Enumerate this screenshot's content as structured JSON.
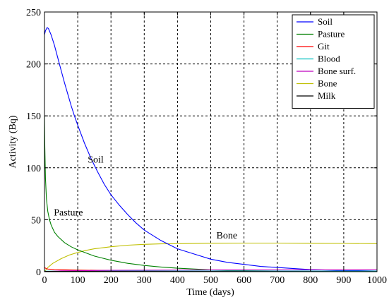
{
  "chart_data": {
    "type": "line",
    "title": "",
    "xlabel": "Time (days)",
    "ylabel": "Activity (Bq)",
    "xlim": [
      0,
      1000
    ],
    "ylim": [
      0,
      250
    ],
    "xticks": [
      0,
      100,
      200,
      300,
      400,
      500,
      600,
      700,
      800,
      900,
      1000
    ],
    "yticks": [
      0,
      50,
      100,
      150,
      200,
      250
    ],
    "grid": true,
    "grid_style": "dashed",
    "legend_position": "top-right",
    "series": [
      {
        "name": "Soil",
        "color": "#0000ff",
        "points": [
          [
            0,
            228
          ],
          [
            3,
            232
          ],
          [
            8,
            235
          ],
          [
            12,
            234
          ],
          [
            20,
            228
          ],
          [
            30,
            218
          ],
          [
            40,
            206
          ],
          [
            50,
            194
          ],
          [
            60,
            182
          ],
          [
            70,
            171
          ],
          [
            80,
            160
          ],
          [
            90,
            150
          ],
          [
            100,
            141
          ],
          [
            120,
            124
          ],
          [
            140,
            109
          ],
          [
            160,
            96
          ],
          [
            180,
            84
          ],
          [
            200,
            74
          ],
          [
            225,
            64
          ],
          [
            250,
            55
          ],
          [
            275,
            47
          ],
          [
            300,
            40
          ],
          [
            350,
            30
          ],
          [
            400,
            22
          ],
          [
            450,
            17
          ],
          [
            500,
            12
          ],
          [
            550,
            9
          ],
          [
            600,
            7
          ],
          [
            650,
            5
          ],
          [
            700,
            4
          ],
          [
            800,
            2
          ],
          [
            900,
            1.2
          ],
          [
            1000,
            0.7
          ]
        ]
      },
      {
        "name": "Pasture",
        "color": "#008000",
        "points": [
          [
            0,
            150
          ],
          [
            1,
            120
          ],
          [
            3,
            90
          ],
          [
            6,
            70
          ],
          [
            10,
            58
          ],
          [
            15,
            50
          ],
          [
            20,
            45
          ],
          [
            30,
            38
          ],
          [
            40,
            34
          ],
          [
            60,
            28
          ],
          [
            80,
            24
          ],
          [
            100,
            21
          ],
          [
            125,
            18
          ],
          [
            150,
            15
          ],
          [
            175,
            13
          ],
          [
            200,
            11
          ],
          [
            250,
            8
          ],
          [
            300,
            6
          ],
          [
            350,
            4.5
          ],
          [
            400,
            3.3
          ],
          [
            500,
            1.8
          ],
          [
            600,
            1
          ],
          [
            700,
            0.6
          ],
          [
            800,
            0.3
          ],
          [
            1000,
            0.1
          ]
        ]
      },
      {
        "name": "Git",
        "color": "#ff0000",
        "points": [
          [
            0,
            4
          ],
          [
            5,
            3
          ],
          [
            10,
            2.5
          ],
          [
            30,
            2
          ],
          [
            100,
            1.5
          ],
          [
            300,
            0.8
          ],
          [
            600,
            0.3
          ],
          [
            1000,
            0.1
          ]
        ]
      },
      {
        "name": "Blood",
        "color": "#00bfbf",
        "points": [
          [
            0,
            0.5
          ],
          [
            100,
            0.6
          ],
          [
            300,
            0.7
          ],
          [
            600,
            0.7
          ],
          [
            1000,
            0.7
          ]
        ]
      },
      {
        "name": "Bone surf.",
        "color": "#bf00bf",
        "points": [
          [
            0,
            0
          ],
          [
            50,
            0.8
          ],
          [
            200,
            1.3
          ],
          [
            500,
            1.6
          ],
          [
            1000,
            1.8
          ]
        ]
      },
      {
        "name": "Bone",
        "color": "#bfbf00",
        "points": [
          [
            0,
            0
          ],
          [
            10,
            4
          ],
          [
            25,
            8
          ],
          [
            50,
            12.5
          ],
          [
            75,
            16
          ],
          [
            100,
            18.5
          ],
          [
            125,
            20.5
          ],
          [
            150,
            22
          ],
          [
            200,
            24
          ],
          [
            250,
            25.5
          ],
          [
            300,
            26.3
          ],
          [
            350,
            26.8
          ],
          [
            400,
            27
          ],
          [
            500,
            27.4
          ],
          [
            600,
            27.5
          ],
          [
            700,
            27.5
          ],
          [
            800,
            27.3
          ],
          [
            900,
            27.2
          ],
          [
            1000,
            27
          ]
        ]
      },
      {
        "name": "Milk",
        "color": "#000000",
        "points": [
          [
            0,
            0.3
          ],
          [
            200,
            0.3
          ],
          [
            500,
            0.2
          ],
          [
            1000,
            0.1
          ]
        ]
      }
    ],
    "annotations": [
      {
        "text": "Soil",
        "x": 130,
        "y": 105
      },
      {
        "text": "Pasture",
        "x": 28,
        "y": 54
      },
      {
        "text": "Bone",
        "x": 517,
        "y": 32
      }
    ]
  }
}
